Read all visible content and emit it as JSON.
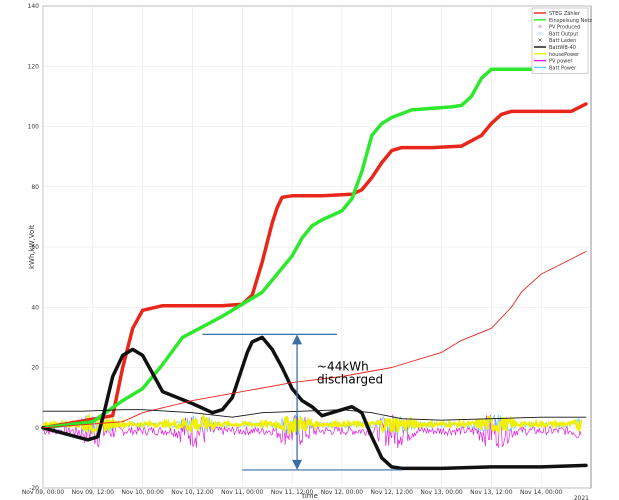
{
  "chart_data": {
    "type": "line",
    "title": "",
    "xlabel": "time",
    "ylabel": "kWh,kW,Volt",
    "ylim": [
      -20,
      140
    ],
    "xlim_days": [
      "Nov 09, 00:00",
      "Nov 14, 12:00"
    ],
    "yticks": [
      -20,
      0,
      20,
      40,
      60,
      80,
      100,
      120,
      140
    ],
    "xticks": [
      "Nov 09, 00:00",
      "Nov 09, 12:00",
      "Nov 10, 00:00",
      "Nov 10, 12:00",
      "Nov 11, 00:00",
      "Nov 11, 12:00",
      "Nov 12, 00:00",
      "Nov 12, 12:00",
      "Nov 13, 00:00",
      "Nov 13, 12:00",
      "Nov 14, 00:00"
    ],
    "xtick_sublabel": "2021",
    "grid": true,
    "legend_position": "top-right",
    "legend": [
      {
        "name": "STEG Zähler",
        "color": "#e8261c",
        "marker": "line"
      },
      {
        "name": "Einspeisung Netz",
        "color": "#2ee82e",
        "marker": "line"
      },
      {
        "name": "PV Produced",
        "color": "#ff4da6",
        "marker": "x"
      },
      {
        "name": "Batt Output",
        "color": "#7fd0ff",
        "marker": "x"
      },
      {
        "name": "Batt Laden",
        "color": "#222222",
        "marker": "x"
      },
      {
        "name": "BattWB-40",
        "color": "#111111",
        "marker": "line"
      },
      {
        "name": "housePower",
        "color": "#f0f000",
        "marker": "line"
      },
      {
        "name": "PV power",
        "color": "#dd22dd",
        "marker": "line"
      },
      {
        "name": "Batt Power",
        "color": "#66ccff",
        "marker": "line"
      }
    ],
    "series": [
      {
        "name": "STEG Zähler",
        "color": "#e8261c",
        "width": 3.5,
        "x": [
          0.0,
          0.7,
          0.8,
          0.9,
          1.0,
          1.2,
          1.8,
          2.0,
          2.1,
          2.2,
          2.3,
          2.35,
          2.4,
          2.5,
          2.8,
          3.1,
          3.2,
          3.3,
          3.4,
          3.5,
          3.6,
          3.7,
          3.8,
          3.9,
          4.2,
          4.4,
          4.5,
          4.6,
          4.7,
          4.8,
          5.0,
          5.3,
          5.45
        ],
        "y": [
          0,
          4,
          20,
          33,
          39,
          40.5,
          40.5,
          41,
          44,
          55,
          68,
          73,
          76.5,
          77,
          77,
          77.5,
          79,
          83,
          88,
          92,
          93,
          93,
          93,
          93,
          93.5,
          97,
          101,
          104,
          105,
          105,
          105,
          105,
          107.5
        ]
      },
      {
        "name": "Einspeisung Netz",
        "color": "#2ee82e",
        "width": 3.5,
        "x": [
          0.0,
          0.5,
          0.8,
          1.0,
          1.2,
          1.4,
          1.8,
          2.2,
          2.5,
          2.6,
          2.7,
          2.8,
          3.0,
          3.1,
          3.2,
          3.3,
          3.4,
          3.5,
          3.7,
          3.9,
          4.1,
          4.2,
          4.3,
          4.4,
          4.5,
          4.6,
          5.0,
          5.2,
          5.45
        ],
        "y": [
          0,
          2,
          9,
          13,
          21,
          30,
          37,
          45,
          57,
          63,
          67,
          69,
          72,
          76,
          85,
          97,
          101,
          103,
          105.5,
          106,
          106.5,
          107,
          110,
          116,
          119,
          119,
          119,
          119,
          119.5
        ]
      },
      {
        "name": "Batt Laden",
        "color": "#111111",
        "width": 3.5,
        "x": [
          0.0,
          0.45,
          0.55,
          0.62,
          0.7,
          0.8,
          0.9,
          1.0,
          1.1,
          1.2,
          1.5,
          1.7,
          1.8,
          1.9,
          2.0,
          2.05,
          2.1,
          2.2,
          2.3,
          2.4,
          2.5,
          2.6,
          2.7,
          2.8,
          3.0,
          3.1,
          3.2,
          3.3,
          3.4,
          3.5,
          3.6,
          3.7,
          3.8,
          4.0,
          4.5,
          5.0,
          5.45
        ],
        "y": [
          0,
          -4,
          -3,
          6,
          17,
          24,
          26,
          24,
          18,
          12,
          8,
          5,
          6,
          10,
          20,
          25,
          28.5,
          30,
          26,
          20,
          13,
          9,
          7,
          4,
          6,
          7,
          5,
          -3,
          -10,
          -13,
          -13.5,
          -13.5,
          -13.5,
          -13.5,
          -13,
          -13,
          -12.5
        ]
      },
      {
        "name": "housePower",
        "color": "#e8261c",
        "width": 0.9,
        "x": [
          0.0,
          0.8,
          1.0,
          1.5,
          2.0,
          2.5,
          3.0,
          3.5,
          4.0,
          4.2,
          4.5,
          4.7,
          4.8,
          5.0,
          5.3,
          5.45
        ],
        "y": [
          0,
          2,
          5,
          9,
          12,
          15,
          17,
          20,
          25,
          29,
          33,
          40,
          45,
          51,
          56,
          58.5
        ]
      },
      {
        "name": "BattWB-40",
        "color": "#111111",
        "width": 0.8,
        "x": [
          0.0,
          0.4,
          0.8,
          1.0,
          1.5,
          1.9,
          2.2,
          2.6,
          3.0,
          3.3,
          3.6,
          4.0,
          4.5,
          5.0,
          5.45
        ],
        "y": [
          5.5,
          5.5,
          6,
          6,
          5,
          3.5,
          5,
          5.5,
          6,
          5,
          3,
          2.5,
          3,
          3.5,
          3.5
        ]
      }
    ],
    "annotations": [
      {
        "text_lines": [
          "~44kWh",
          "discharged"
        ],
        "x_day": 2.75,
        "y": 19
      },
      {
        "type": "double-arrow",
        "x_day": 2.55,
        "y_from": 31,
        "y_to": -14,
        "color": "#3b6ea8"
      },
      {
        "type": "hline",
        "x_from": 1.6,
        "x_to": 2.95,
        "y": 31,
        "color": "#3b6ea8"
      },
      {
        "type": "hline",
        "x_from": 2.0,
        "x_to": 3.6,
        "y": -14,
        "color": "#3b6ea8"
      }
    ]
  }
}
